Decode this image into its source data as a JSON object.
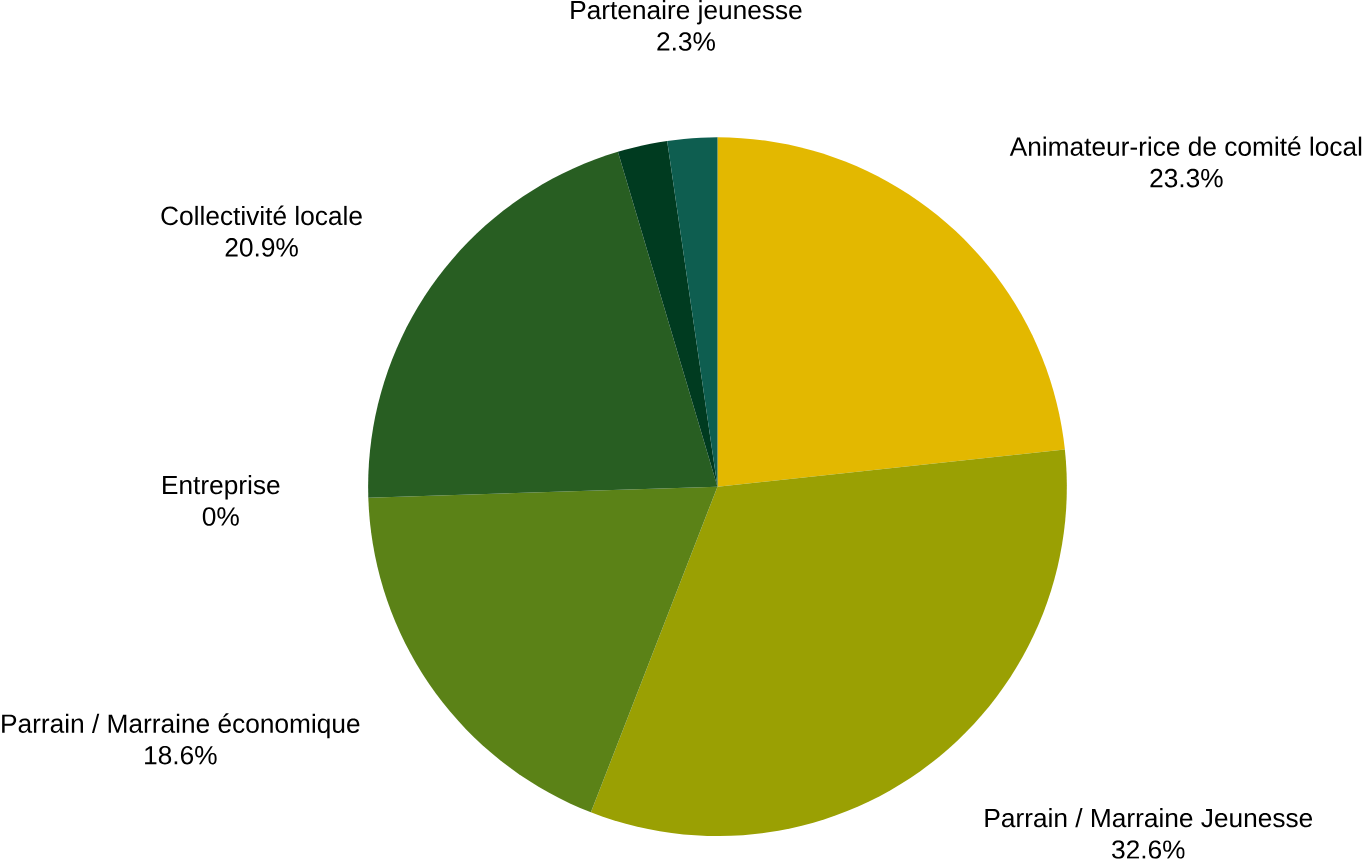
{
  "chart_data": {
    "type": "pie",
    "categories": [
      "Animateur-rice de comité local",
      "Parrain / Marraine Jeunesse",
      "Parrain / Marraine économique",
      "Entreprise",
      "Collectivité locale",
      null,
      "Partenaire jeunesse"
    ],
    "values": [
      23.3,
      32.6,
      18.6,
      0,
      20.9,
      2.3,
      2.3
    ],
    "value_labels": [
      "23.3%",
      "32.6%",
      "18.6%",
      "0%",
      "20.9%",
      null,
      "2.3%"
    ],
    "colors": [
      "#e3b800",
      "#9aa003",
      "#5b8217",
      "#3f7a1c",
      "#285e22",
      "#003b20",
      "#0e5e50"
    ]
  }
}
